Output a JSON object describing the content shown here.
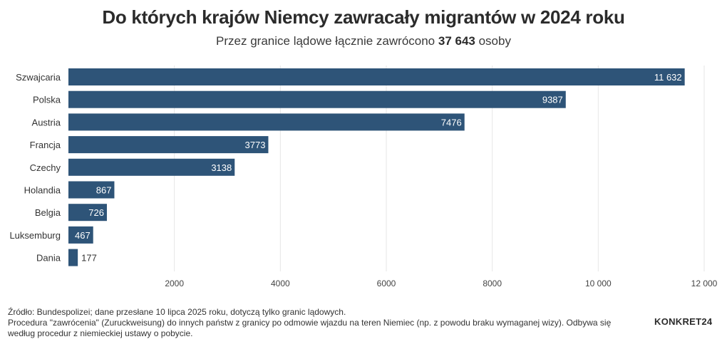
{
  "title": "Do których krajów Niemcy zawracały migrantów w 2024 roku",
  "subtitle": {
    "prefix": "Przez granice lądowe łącznie zawrócono ",
    "total": "37 643",
    "suffix": " osoby"
  },
  "chart_data": {
    "type": "bar",
    "orientation": "horizontal",
    "categories": [
      "Szwajcaria",
      "Polska",
      "Austria",
      "Francja",
      "Czechy",
      "Holandia",
      "Belgia",
      "Luksemburg",
      "Dania"
    ],
    "values": [
      11632,
      9387,
      7476,
      3773,
      3138,
      867,
      726,
      467,
      177
    ],
    "value_labels": [
      "11 632",
      "9387",
      "7476",
      "3773",
      "3138",
      "867",
      "726",
      "467",
      "177"
    ],
    "xlim": [
      0,
      12000
    ],
    "xticks": [
      2000,
      4000,
      6000,
      8000,
      10000,
      12000
    ],
    "xtick_labels": [
      "2000",
      "4000",
      "6000",
      "8000",
      "10 000",
      "12 000"
    ],
    "grid": true,
    "bar_color": "#2e5478"
  },
  "footer": {
    "source": "Źródło: Bundespolizei; dane przesłane 10 lipca 2025 roku, dotyczą tylko granic lądowych.",
    "note_line1": "Procedura \"zawrócenia\" (Zuruckweisung) do innych państw z granicy po odmowie wjazdu na teren Niemiec (np. z powodu braku wymaganej wizy). Odbywa się",
    "note_line2": "według procedur z niemieckiej ustawy o pobycie."
  },
  "logo": "KONKRET24"
}
